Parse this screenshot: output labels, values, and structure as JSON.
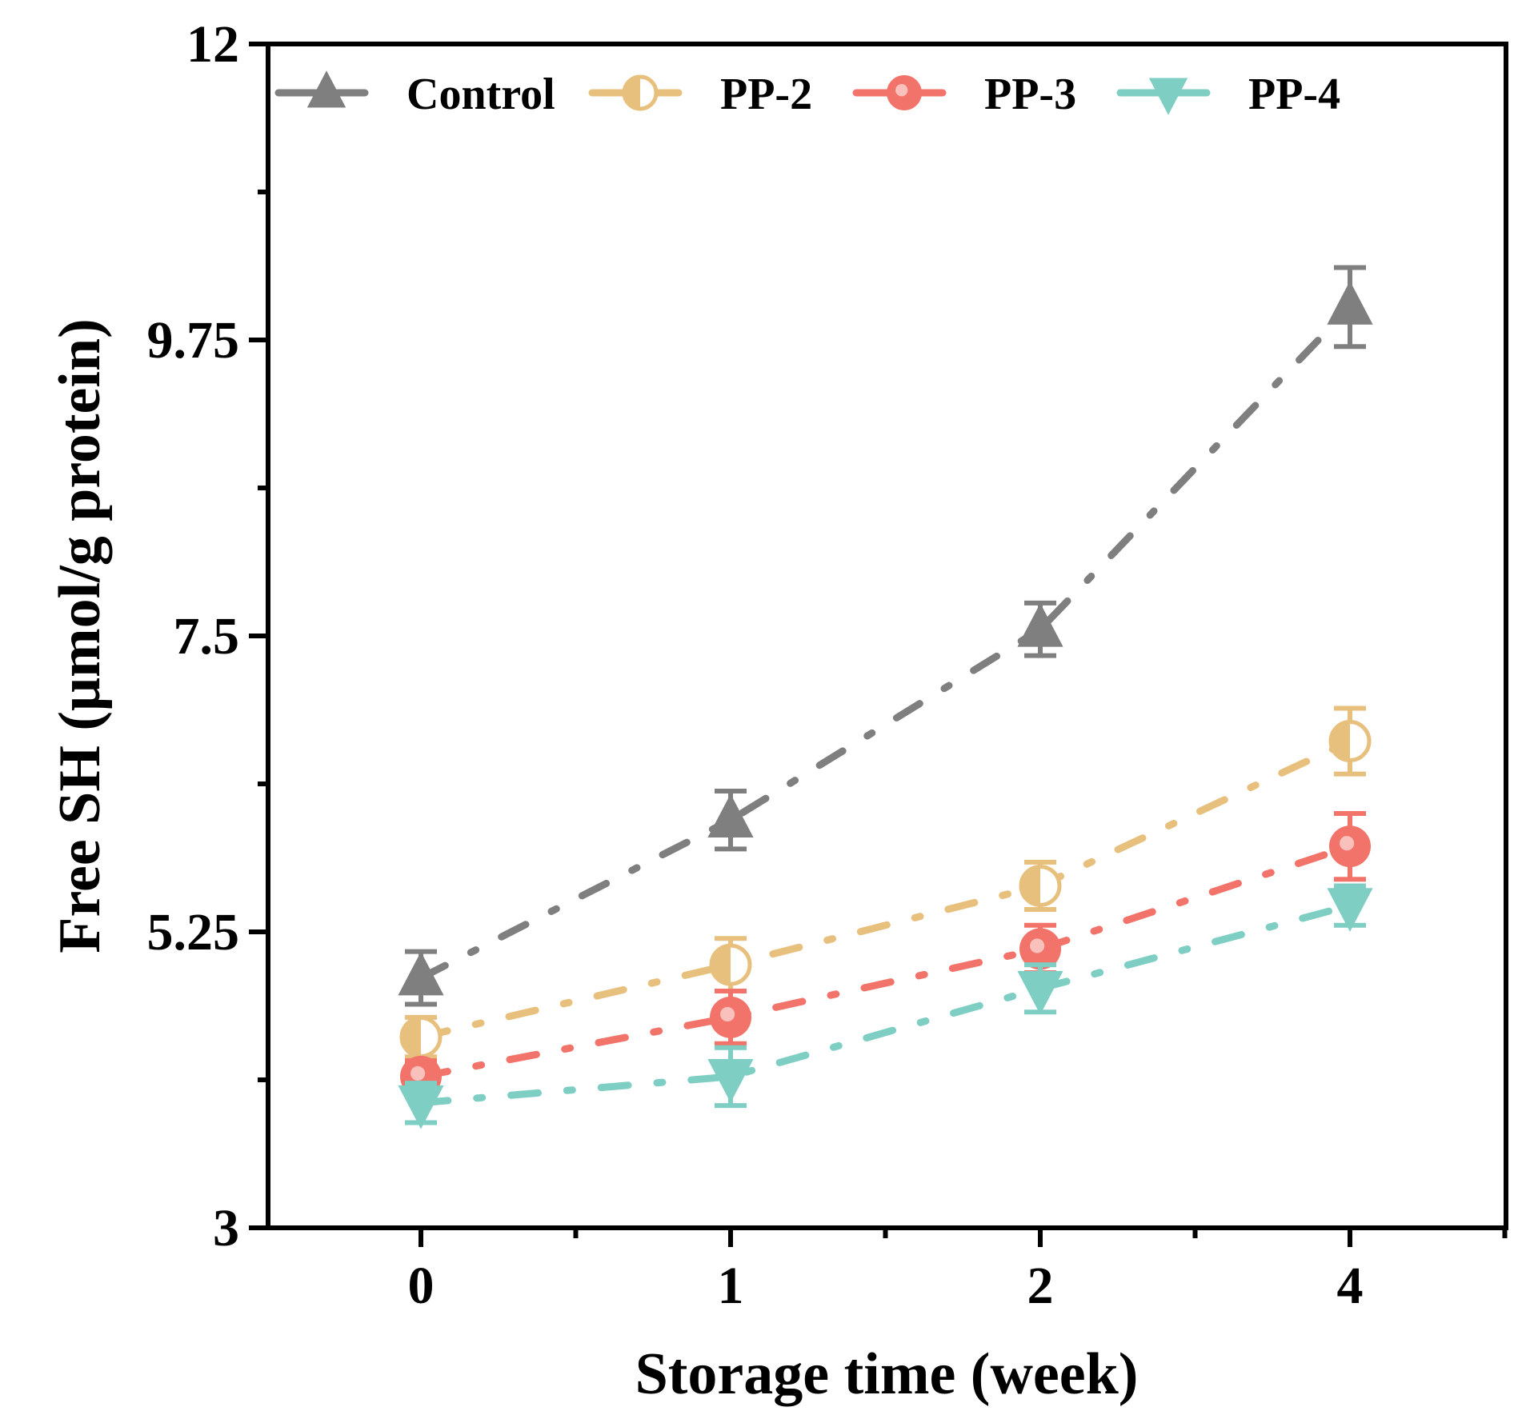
{
  "chart_data": {
    "type": "line",
    "title": "",
    "xlabel": "Storage time (week)",
    "ylabel": "Free SH (μmol/g protein)",
    "categories": [
      "0",
      "1",
      "2",
      "4"
    ],
    "ylim": [
      3,
      12
    ],
    "yticks": [
      3,
      5.25,
      7.5,
      9.75,
      12
    ],
    "ytick_labels": [
      "3",
      "5.25",
      "7.5",
      "9.75",
      "12"
    ],
    "grid": false,
    "legend_position": "top",
    "series": [
      {
        "name": "Control",
        "marker": "triangle-up",
        "color": "#7f7f7f",
        "values": [
          4.9,
          6.1,
          7.55,
          10.0
        ],
        "errors": [
          0.2,
          0.22,
          0.2,
          0.3
        ]
      },
      {
        "name": "PP-2",
        "marker": "half-circle",
        "color": "#e8c07d",
        "values": [
          4.45,
          5.0,
          5.6,
          6.7
        ],
        "errors": [
          0.15,
          0.2,
          0.18,
          0.25
        ]
      },
      {
        "name": "PP-3",
        "marker": "circle",
        "color": "#f2736a",
        "values": [
          4.15,
          4.6,
          5.12,
          5.9
        ],
        "errors": [
          0.12,
          0.2,
          0.18,
          0.25
        ]
      },
      {
        "name": "PP-4",
        "marker": "triangle-down",
        "color": "#7ecec4",
        "values": [
          3.95,
          4.15,
          4.82,
          5.45
        ],
        "errors": [
          0.15,
          0.22,
          0.18,
          0.15
        ]
      }
    ]
  }
}
